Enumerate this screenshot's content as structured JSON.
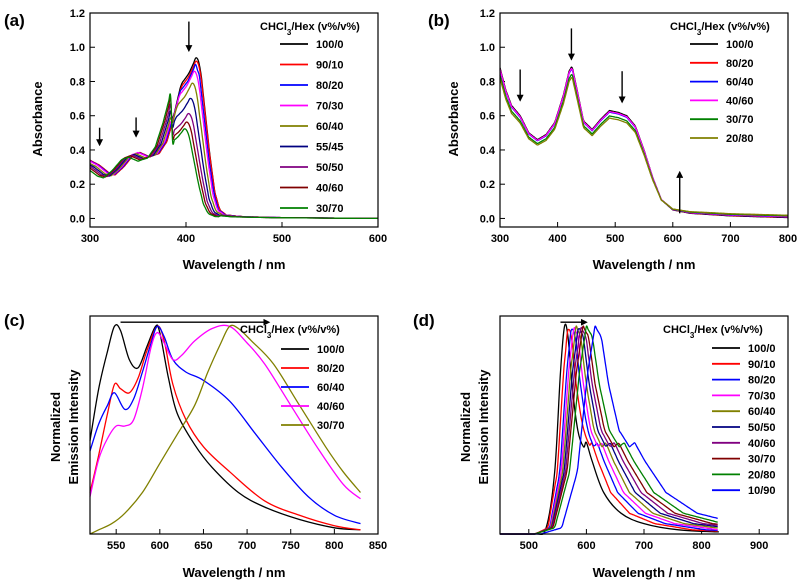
{
  "chart_data": [
    {
      "panel": "(a)",
      "type": "line",
      "xlabel": "Wavelength / nm",
      "ylabel": "Absorbance",
      "xlim": [
        300,
        600
      ],
      "ylim": [
        -0.05,
        1.2
      ],
      "xticks": [
        300,
        400,
        500,
        600
      ],
      "yticks": [
        0.0,
        0.2,
        0.4,
        0.6,
        0.8,
        1.0,
        1.2
      ],
      "ytick_decimals": 1,
      "legend_title": "CHCl3/Hex (v%/v%)",
      "legend_position": "right",
      "arrows": [
        {
          "x": 310,
          "y_from": 0.53,
          "y_to": 0.43
        },
        {
          "x": 348,
          "y_from": 0.59,
          "y_to": 0.48
        },
        {
          "x": 403,
          "y_from": 1.15,
          "y_to": 0.98
        }
      ],
      "template_points": [
        [
          300,
          0.34
        ],
        [
          310,
          0.31
        ],
        [
          320,
          0.265
        ],
        [
          326,
          0.255
        ],
        [
          335,
          0.3
        ],
        [
          345,
          0.37
        ],
        [
          352,
          0.385
        ],
        [
          362,
          0.36
        ],
        [
          372,
          0.38
        ],
        [
          380,
          0.45
        ],
        [
          388,
          0.6
        ],
        [
          395,
          0.76
        ],
        [
          403,
          0.82
        ],
        [
          408,
          0.88
        ],
        [
          411,
          0.92
        ],
        [
          415,
          0.85
        ],
        [
          420,
          0.6
        ],
        [
          425,
          0.35
        ],
        [
          430,
          0.15
        ],
        [
          435,
          0.05
        ],
        [
          442,
          0.02
        ],
        [
          460,
          0.01
        ],
        [
          500,
          0.005
        ],
        [
          600,
          0.0
        ]
      ],
      "peak_region": [
        385,
        425
      ],
      "series": [
        {
          "name": "100/0",
          "color": "#000000",
          "peak": 0.95,
          "shift": 0,
          "base": 1.0
        },
        {
          "name": "90/10",
          "color": "#ff0000",
          "peak": 0.93,
          "shift": 0,
          "base": 1.0
        },
        {
          "name": "80/20",
          "color": "#0000ff",
          "peak": 0.9,
          "shift": -1,
          "base": 1.0
        },
        {
          "name": "70/30",
          "color": "#ff00ff",
          "peak": 0.87,
          "shift": -2,
          "base": 1.0
        },
        {
          "name": "60/40",
          "color": "#808000",
          "peak": 0.8,
          "shift": -4,
          "base": 0.98
        },
        {
          "name": "55/45",
          "color": "#000080",
          "peak": 0.71,
          "shift": -6,
          "base": 0.97
        },
        {
          "name": "50/50",
          "color": "#800080",
          "peak": 0.62,
          "shift": -8,
          "base": 0.96
        },
        {
          "name": "40/60",
          "color": "#800000",
          "peak": 0.57,
          "shift": -10,
          "base": 0.95
        },
        {
          "name": "30/70",
          "color": "#008000",
          "peak": 0.53,
          "shift": -12,
          "base": 0.93
        }
      ]
    },
    {
      "panel": "(b)",
      "type": "line",
      "xlabel": "Wavelength / nm",
      "ylabel": "Absorbance",
      "xlim": [
        300,
        800
      ],
      "ylim": [
        -0.05,
        1.2
      ],
      "xticks": [
        300,
        400,
        500,
        600,
        700,
        800
      ],
      "yticks": [
        0.0,
        0.2,
        0.4,
        0.6,
        0.8,
        1.0,
        1.2
      ],
      "ytick_decimals": 1,
      "legend_title": "CHCl3/Hex (v%/v%)",
      "legend_position": "right",
      "arrows": [
        {
          "x": 335,
          "y_from": 0.87,
          "y_to": 0.69
        },
        {
          "x": 424,
          "y_from": 1.11,
          "y_to": 0.93
        },
        {
          "x": 512,
          "y_from": 0.86,
          "y_to": 0.68
        },
        {
          "x": 612,
          "y_from": 0.03,
          "y_to": 0.27
        }
      ],
      "template_points": [
        [
          300,
          0.88
        ],
        [
          310,
          0.75
        ],
        [
          320,
          0.66
        ],
        [
          335,
          0.6
        ],
        [
          350,
          0.5
        ],
        [
          365,
          0.46
        ],
        [
          380,
          0.49
        ],
        [
          395,
          0.56
        ],
        [
          410,
          0.72
        ],
        [
          420,
          0.86
        ],
        [
          425,
          0.89
        ],
        [
          432,
          0.78
        ],
        [
          445,
          0.57
        ],
        [
          460,
          0.52
        ],
        [
          475,
          0.58
        ],
        [
          490,
          0.63
        ],
        [
          505,
          0.62
        ],
        [
          520,
          0.6
        ],
        [
          535,
          0.54
        ],
        [
          550,
          0.4
        ],
        [
          565,
          0.24
        ],
        [
          580,
          0.11
        ],
        [
          600,
          0.05
        ],
        [
          630,
          0.03
        ],
        [
          700,
          0.015
        ],
        [
          800,
          0.005
        ]
      ],
      "series": [
        {
          "name": "100/0",
          "color": "#000000",
          "scale": 1.0,
          "tail": 0.0
        },
        {
          "name": "80/20",
          "color": "#ff0000",
          "scale": 0.99,
          "tail": 0.002
        },
        {
          "name": "60/40",
          "color": "#0000ff",
          "scale": 0.985,
          "tail": 0.004
        },
        {
          "name": "40/60",
          "color": "#ff00ff",
          "scale": 0.99,
          "tail": 0.006
        },
        {
          "name": "30/70",
          "color": "#008000",
          "scale": 0.95,
          "tail": 0.01
        },
        {
          "name": "20/80",
          "color": "#808000",
          "scale": 0.93,
          "tail": 0.014
        }
      ]
    },
    {
      "panel": "(c)",
      "type": "line",
      "xlabel": "Wavelength / nm",
      "ylabel": "Normalized\nEmission Intensity",
      "xlim": [
        520,
        850
      ],
      "ylim": [
        0.0,
        1.05
      ],
      "xticks": [
        550,
        600,
        650,
        700,
        750,
        800,
        850
      ],
      "yticks": [],
      "legend_title": "CHCl3/Hex (v%/v%)",
      "legend_position": "right",
      "arrows": [
        {
          "x_from": 555,
          "x_to": 725,
          "y": 1.02,
          "horizontal": true
        }
      ],
      "series": [
        {
          "name": "100/0",
          "color": "#000000",
          "points": [
            [
              520,
              0.45
            ],
            [
              530,
              0.7
            ],
            [
              540,
              0.88
            ],
            [
              548,
              1.0
            ],
            [
              555,
              0.98
            ],
            [
              565,
              0.84
            ],
            [
              575,
              0.8
            ],
            [
              585,
              0.9
            ],
            [
              595,
              1.0
            ],
            [
              600,
              0.97
            ],
            [
              610,
              0.75
            ],
            [
              620,
              0.58
            ],
            [
              640,
              0.43
            ],
            [
              660,
              0.32
            ],
            [
              690,
              0.2
            ],
            [
              720,
              0.13
            ],
            [
              760,
              0.07
            ],
            [
              800,
              0.03
            ],
            [
              830,
              0.02
            ]
          ]
        },
        {
          "name": "80/20",
          "color": "#ff0000",
          "points": [
            [
              520,
              0.2
            ],
            [
              530,
              0.38
            ],
            [
              540,
              0.58
            ],
            [
              548,
              0.72
            ],
            [
              555,
              0.7
            ],
            [
              565,
              0.68
            ],
            [
              575,
              0.75
            ],
            [
              585,
              0.88
            ],
            [
              597,
              1.0
            ],
            [
              605,
              0.93
            ],
            [
              615,
              0.72
            ],
            [
              630,
              0.55
            ],
            [
              650,
              0.42
            ],
            [
              680,
              0.3
            ],
            [
              720,
              0.16
            ],
            [
              760,
              0.09
            ],
            [
              800,
              0.04
            ],
            [
              830,
              0.02
            ]
          ]
        },
        {
          "name": "60/40",
          "color": "#0000ff",
          "points": [
            [
              520,
              0.4
            ],
            [
              530,
              0.53
            ],
            [
              540,
              0.62
            ],
            [
              548,
              0.68
            ],
            [
              560,
              0.6
            ],
            [
              570,
              0.65
            ],
            [
              580,
              0.78
            ],
            [
              590,
              0.92
            ],
            [
              597,
              1.0
            ],
            [
              605,
              0.95
            ],
            [
              615,
              0.84
            ],
            [
              630,
              0.78
            ],
            [
              650,
              0.74
            ],
            [
              680,
              0.64
            ],
            [
              710,
              0.48
            ],
            [
              740,
              0.32
            ],
            [
              770,
              0.18
            ],
            [
              800,
              0.09
            ],
            [
              830,
              0.05
            ]
          ]
        },
        {
          "name": "40/60",
          "color": "#ff00ff",
          "points": [
            [
              520,
              0.18
            ],
            [
              530,
              0.36
            ],
            [
              540,
              0.46
            ],
            [
              550,
              0.52
            ],
            [
              560,
              0.52
            ],
            [
              570,
              0.55
            ],
            [
              580,
              0.7
            ],
            [
              590,
              0.9
            ],
            [
              597,
              0.97
            ],
            [
              605,
              0.92
            ],
            [
              615,
              0.84
            ],
            [
              625,
              0.86
            ],
            [
              640,
              0.93
            ],
            [
              660,
              0.99
            ],
            [
              680,
              1.0
            ],
            [
              700,
              0.92
            ],
            [
              720,
              0.82
            ],
            [
              750,
              0.62
            ],
            [
              780,
              0.42
            ],
            [
              810,
              0.24
            ],
            [
              830,
              0.17
            ]
          ]
        },
        {
          "name": "30/70",
          "color": "#808000",
          "points": [
            [
              520,
              0.0
            ],
            [
              530,
              0.02
            ],
            [
              545,
              0.05
            ],
            [
              560,
              0.1
            ],
            [
              580,
              0.2
            ],
            [
              600,
              0.34
            ],
            [
              620,
              0.48
            ],
            [
              640,
              0.62
            ],
            [
              655,
              0.78
            ],
            [
              670,
              0.92
            ],
            [
              680,
              1.0
            ],
            [
              690,
              0.99
            ],
            [
              705,
              0.93
            ],
            [
              730,
              0.82
            ],
            [
              760,
              0.62
            ],
            [
              790,
              0.42
            ],
            [
              810,
              0.3
            ],
            [
              830,
              0.2
            ]
          ]
        }
      ]
    },
    {
      "panel": "(d)",
      "type": "line",
      "xlabel": "Wavelength / nm",
      "ylabel": "Normalized\nEmission Intensity",
      "xlim": [
        450,
        950
      ],
      "ylim": [
        0.0,
        1.05
      ],
      "xticks": [
        500,
        600,
        700,
        800,
        900
      ],
      "yticks": [],
      "legend_title": "CHCl3/Hex (v%/v%)",
      "legend_position": "right",
      "arrows": [
        {
          "x_from": 555,
          "x_to": 600,
          "y": 1.02,
          "horizontal": true
        }
      ],
      "series": [
        {
          "name": "100/0",
          "color": "#000000",
          "peak": 562,
          "points": [
            [
              450,
              0.0
            ],
            [
              510,
              0.0
            ],
            [
              530,
              0.03
            ],
            [
              545,
              0.3
            ],
            [
              555,
              0.78
            ],
            [
              562,
              1.0
            ],
            [
              568,
              0.95
            ],
            [
              575,
              0.72
            ],
            [
              585,
              0.5
            ],
            [
              595,
              0.42
            ],
            [
              600,
              0.44
            ],
            [
              610,
              0.35
            ],
            [
              630,
              0.2
            ],
            [
              660,
              0.1
            ],
            [
              700,
              0.05
            ],
            [
              760,
              0.02
            ],
            [
              830,
              0.01
            ]
          ]
        },
        {
          "name": "90/10",
          "color": "#ff0000",
          "peak": 568
        },
        {
          "name": "80/20",
          "color": "#0000ff",
          "peak": 574
        },
        {
          "name": "70/30",
          "color": "#ff00ff",
          "peak": 578
        },
        {
          "name": "60/40",
          "color": "#808000",
          "peak": 582
        },
        {
          "name": "50/50",
          "color": "#000080",
          "peak": 586
        },
        {
          "name": "40/60",
          "color": "#800080",
          "peak": 590
        },
        {
          "name": "30/70",
          "color": "#800000",
          "peak": 594
        },
        {
          "name": "20/80",
          "color": "#008000",
          "peak": 600
        },
        {
          "name": "10/90",
          "color": "#0000ff",
          "peak": 615
        }
      ]
    }
  ]
}
